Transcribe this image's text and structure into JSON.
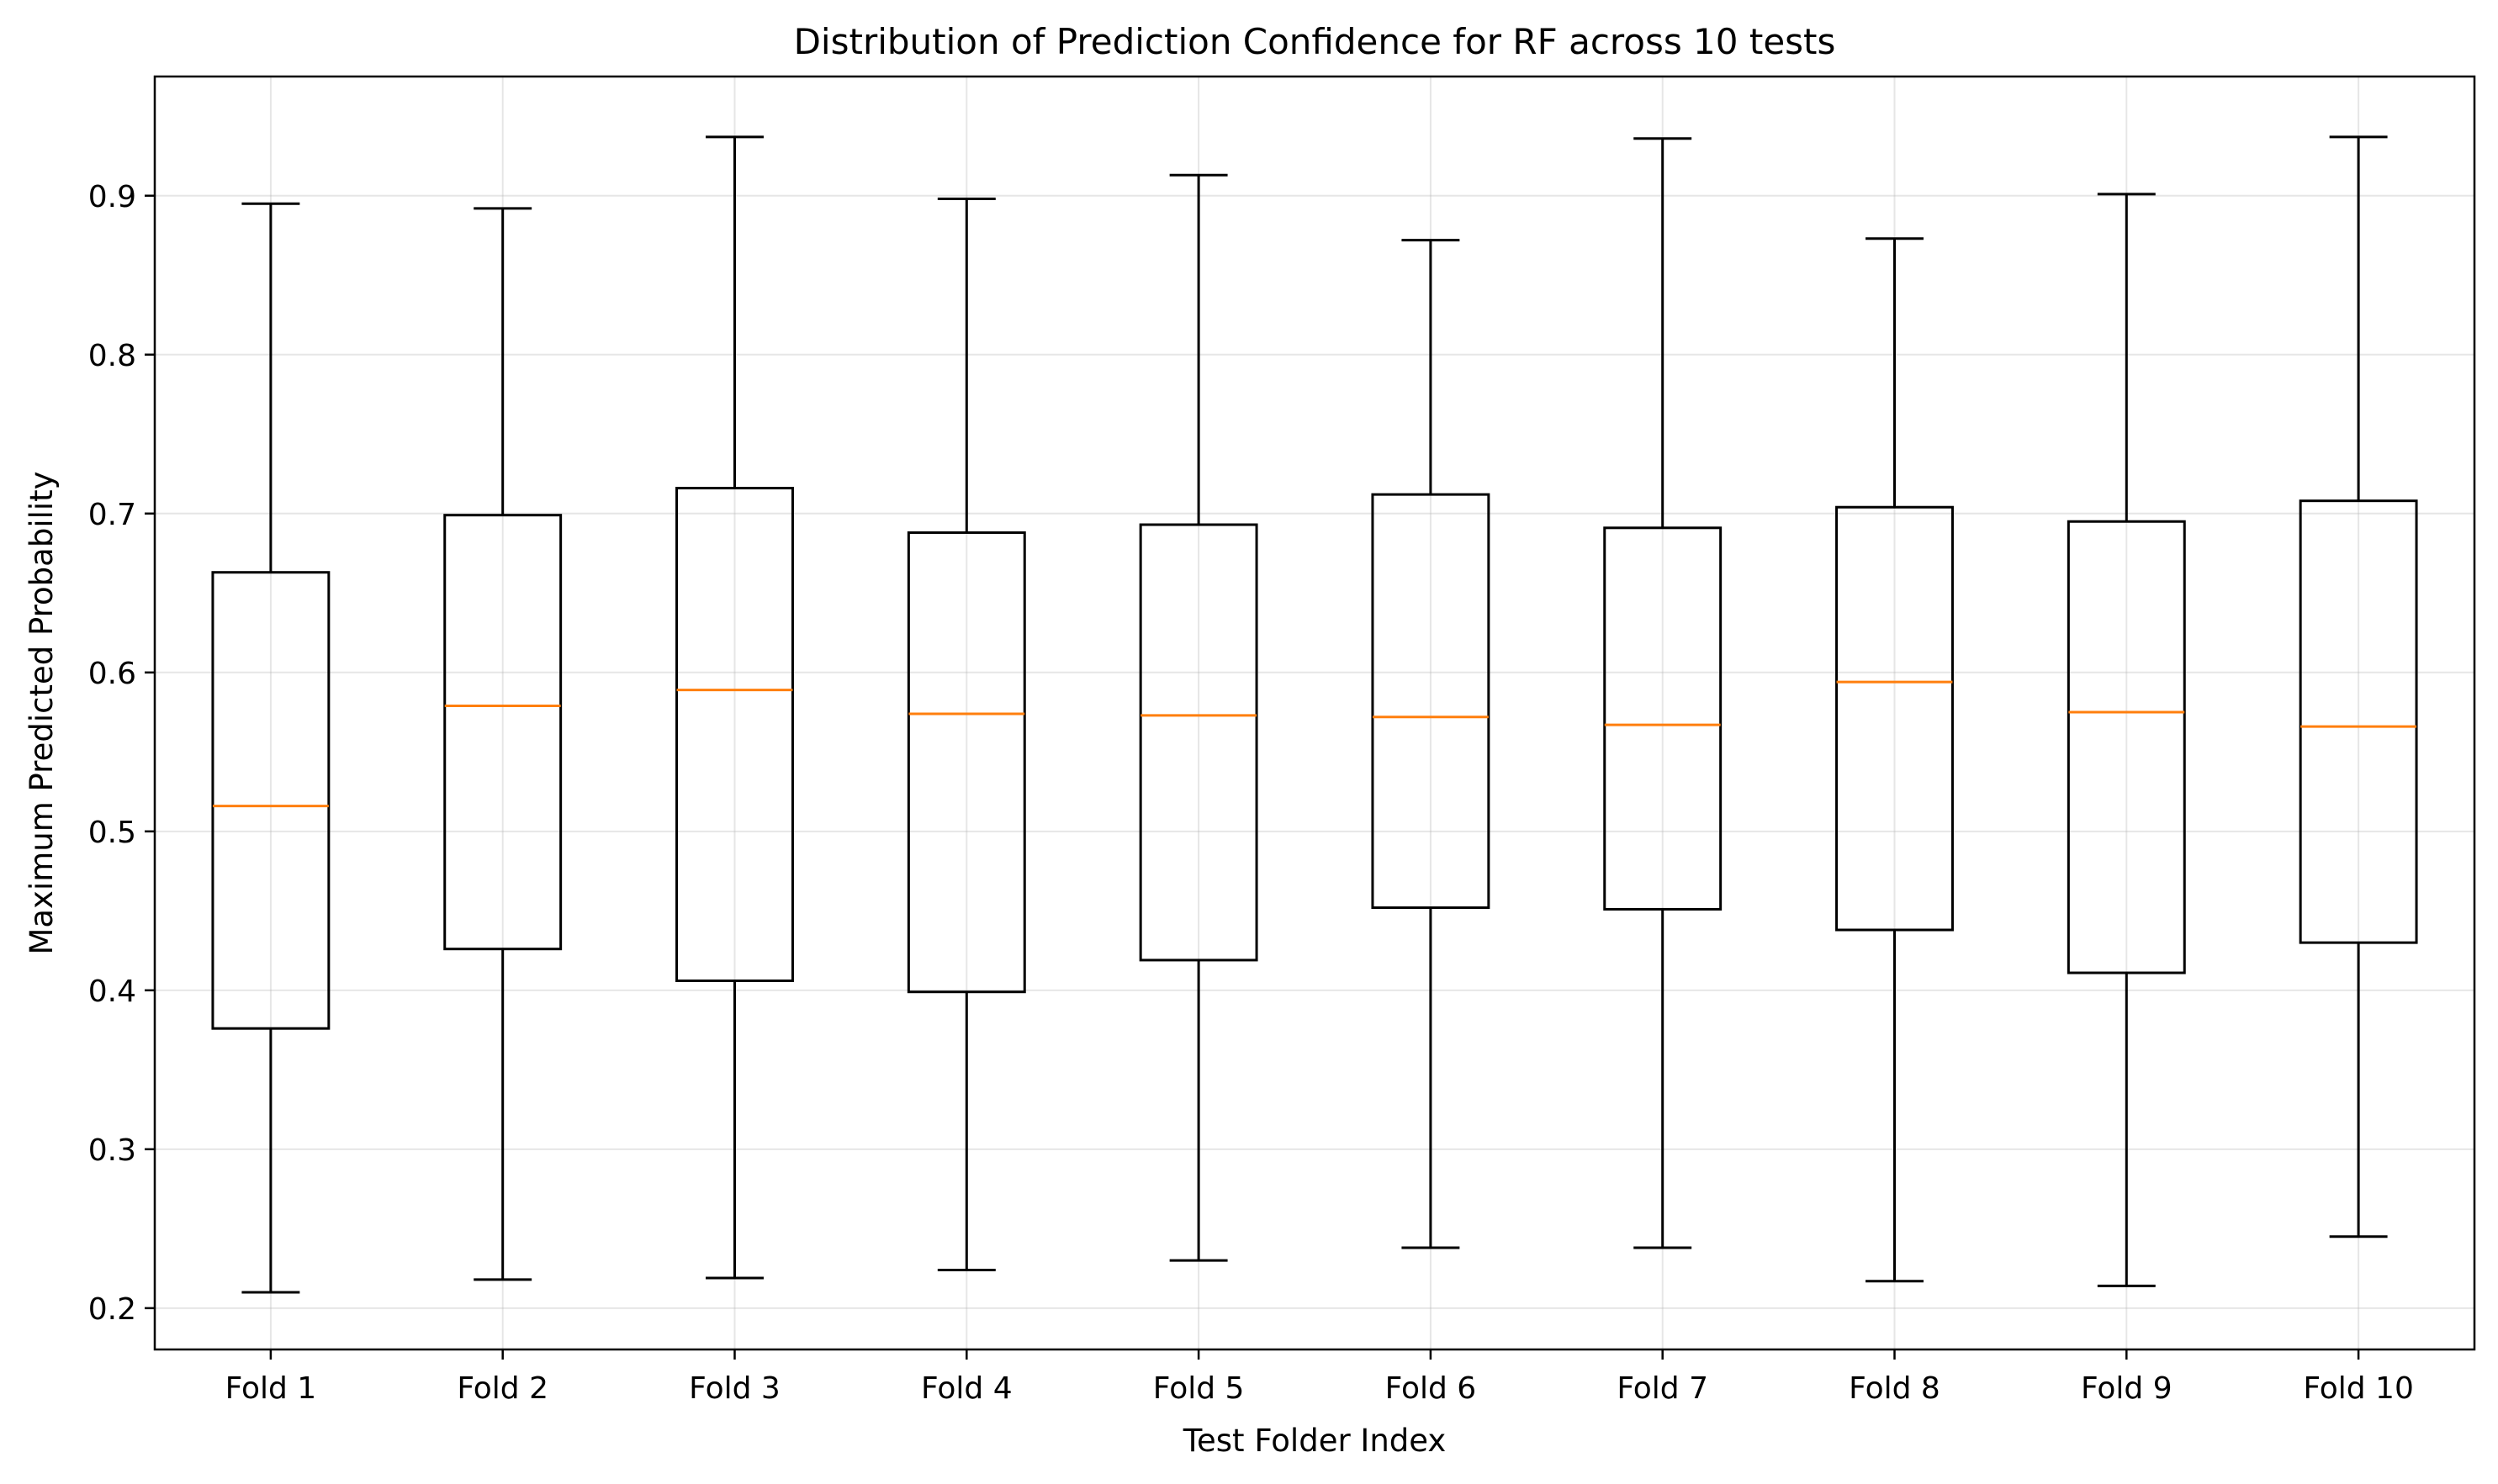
{
  "chart_data": {
    "type": "box",
    "title": "Distribution of Prediction Confidence for RF across 10 tests",
    "xlabel": "Test Folder Index",
    "ylabel": "Maximum Predicted Probability",
    "ylim": [
      0.174,
      0.975
    ],
    "yticks": [
      0.2,
      0.3,
      0.4,
      0.5,
      0.6,
      0.7,
      0.8,
      0.9
    ],
    "grid": true,
    "colors": {
      "box": "#000000",
      "median": "#ff7f0e",
      "grid": "#b0b0b0"
    },
    "categories": [
      "Fold 1",
      "Fold 2",
      "Fold 3",
      "Fold 4",
      "Fold 5",
      "Fold 6",
      "Fold 7",
      "Fold 8",
      "Fold 9",
      "Fold 10"
    ],
    "boxes": [
      {
        "min": 0.21,
        "q1": 0.376,
        "median": 0.516,
        "q3": 0.663,
        "max": 0.895
      },
      {
        "min": 0.218,
        "q1": 0.426,
        "median": 0.579,
        "q3": 0.699,
        "max": 0.892
      },
      {
        "min": 0.219,
        "q1": 0.406,
        "median": 0.589,
        "q3": 0.716,
        "max": 0.937
      },
      {
        "min": 0.224,
        "q1": 0.399,
        "median": 0.574,
        "q3": 0.688,
        "max": 0.898
      },
      {
        "min": 0.23,
        "q1": 0.419,
        "median": 0.573,
        "q3": 0.693,
        "max": 0.913
      },
      {
        "min": 0.238,
        "q1": 0.452,
        "median": 0.572,
        "q3": 0.712,
        "max": 0.872
      },
      {
        "min": 0.238,
        "q1": 0.451,
        "median": 0.567,
        "q3": 0.691,
        "max": 0.936
      },
      {
        "min": 0.217,
        "q1": 0.438,
        "median": 0.594,
        "q3": 0.704,
        "max": 0.873
      },
      {
        "min": 0.214,
        "q1": 0.411,
        "median": 0.575,
        "q3": 0.695,
        "max": 0.901
      },
      {
        "min": 0.245,
        "q1": 0.43,
        "median": 0.566,
        "q3": 0.708,
        "max": 0.937
      }
    ]
  }
}
